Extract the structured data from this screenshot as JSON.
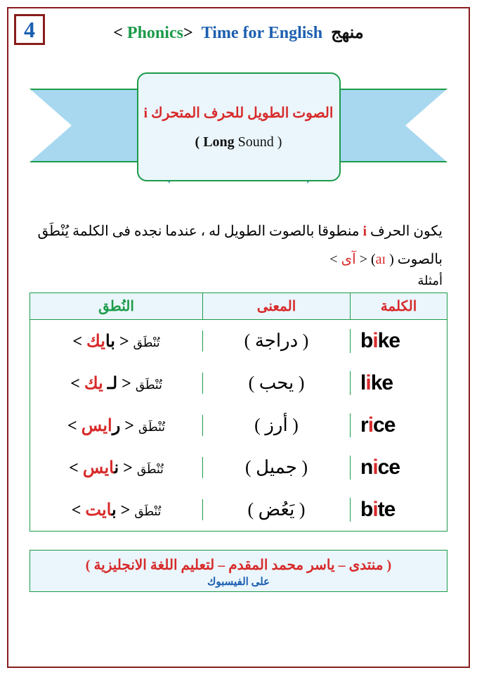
{
  "colors": {
    "page_border": "#8a1d1d",
    "corner_border": "#8a1d1d",
    "corner_text": "#1c5fb0",
    "green": "#1c9b4a",
    "red": "#d82a2a",
    "blue": "#1c5fb0",
    "black": "#111111",
    "box_bg": "#eaf6fc",
    "ribbon_bg": "#a7d8f0"
  },
  "corner_number": "4",
  "header": {
    "bracket_open": "< ",
    "phonics": "Phonics",
    "bracket_close": ">",
    "title_en": "Time for English",
    "title_ar": "منهج"
  },
  "center": {
    "ar_pre": "الصوت الطويل للحرف المتحرك  ",
    "ar_letter": "i",
    "en_open": "( ",
    "en_bold": "Long",
    "en_rest": " Sound )"
  },
  "desc": {
    "p1_pre": "يكون الحرف ",
    "p1_i": "i",
    "p1_post": " منطوقا بالصوت الطويل له ، عندما نجده فى الكلمة يُنْطَق",
    "p2_pre": "بالصوت ( ",
    "p2_ipa": "aɪ",
    "p2_mid": ") < ",
    "p2_ar": "آى",
    "p2_close": " >"
  },
  "examples_label": "أمثلة",
  "table": {
    "headers": {
      "word": "الكلمة",
      "meaning": "المعنى",
      "pron": "النُطق"
    },
    "rows": [
      {
        "w_pre": "b",
        "w_hi": "i",
        "w_post": "ke",
        "meaning": "( دراجة )",
        "pron_pre": "تُنْطَق",
        "pron_open": "<",
        "pron_a": " با",
        "pron_hi": "يك",
        "pron_b": " ",
        "pron_close": ">"
      },
      {
        "w_pre": "l",
        "w_hi": "i",
        "w_post": "ke",
        "meaning": "( يحب )",
        "pron_pre": "تُنْطَق",
        "pron_open": "<",
        "pron_a": " لـ ",
        "pron_hi": "يك",
        "pron_b": " ",
        "pron_close": ">"
      },
      {
        "w_pre": "r",
        "w_hi": "i",
        "w_post": "ce",
        "meaning": "( أرز )",
        "pron_pre": "تُنْطَق",
        "pron_open": "<",
        "pron_a": " ر",
        "pron_hi": "ايس",
        "pron_b": " ",
        "pron_close": ">"
      },
      {
        "w_pre": "n",
        "w_hi": "i",
        "w_post": "ce",
        "meaning": "( جميل )",
        "pron_pre": "تُنْطَق",
        "pron_open": "<",
        "pron_a": " ن",
        "pron_hi": "ايس",
        "pron_b": " ",
        "pron_close": ">"
      },
      {
        "w_pre": "b",
        "w_hi": "i",
        "w_post": "te",
        "meaning": "( يَعُض )",
        "pron_pre": "تُنْطَق",
        "pron_open": "<",
        "pron_a": " ب",
        "pron_hi": "ايت",
        "pron_b": " ",
        "pron_close": ">"
      }
    ]
  },
  "footer": {
    "main": "( منتدى – ياسر محمد المقدم – لتعليم اللغة الانجليزية )",
    "sub": "على الفيسبوك"
  }
}
